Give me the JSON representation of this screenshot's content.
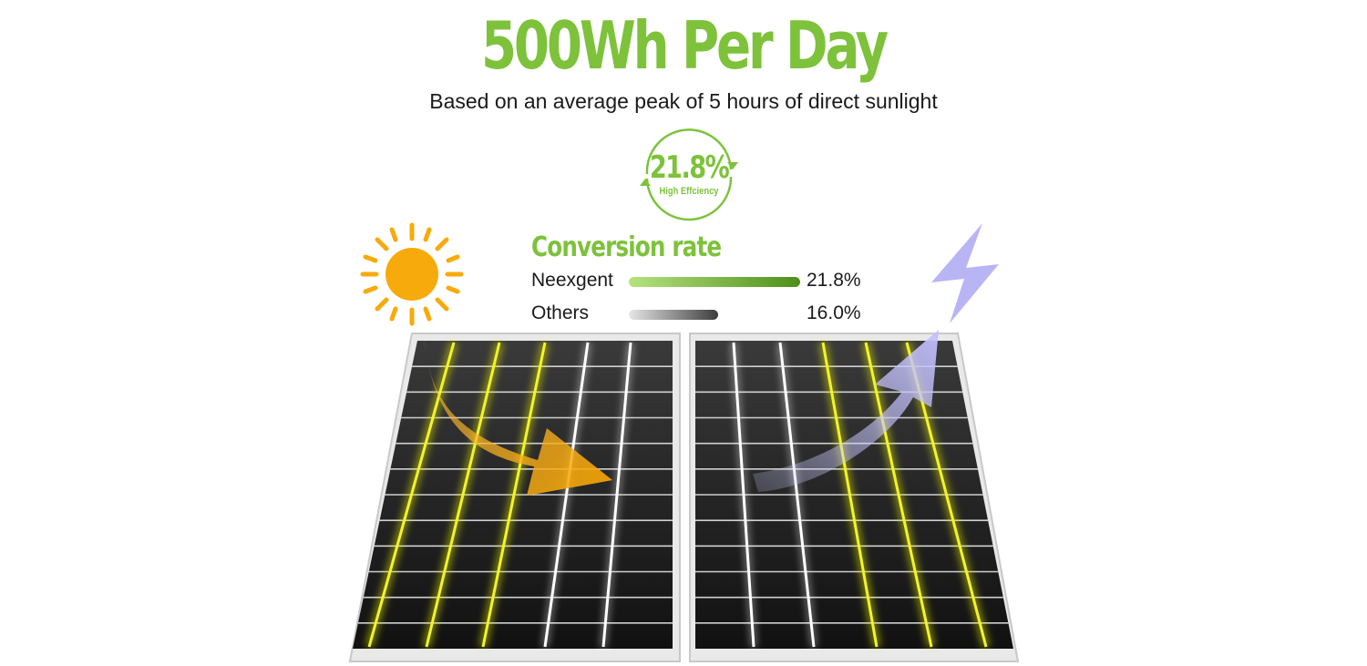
{
  "headline": "500Wh Per Day",
  "subtitle": "Based on an average peak of 5 hours of direct sunlight",
  "badge": {
    "value": "21.8%",
    "label": "High Effciency"
  },
  "conversion": {
    "title": "Conversion rate",
    "rows": [
      {
        "label": "Neexgent",
        "value": "21.8%",
        "percent": 21.8
      },
      {
        "label": "Others",
        "value": "16.0%",
        "percent": 16.0
      }
    ]
  },
  "colors": {
    "green": "#7dc23a",
    "sun": "#f7aa0c",
    "bolt": "#b9b5f5",
    "line_yellow": "#f3f32a"
  }
}
